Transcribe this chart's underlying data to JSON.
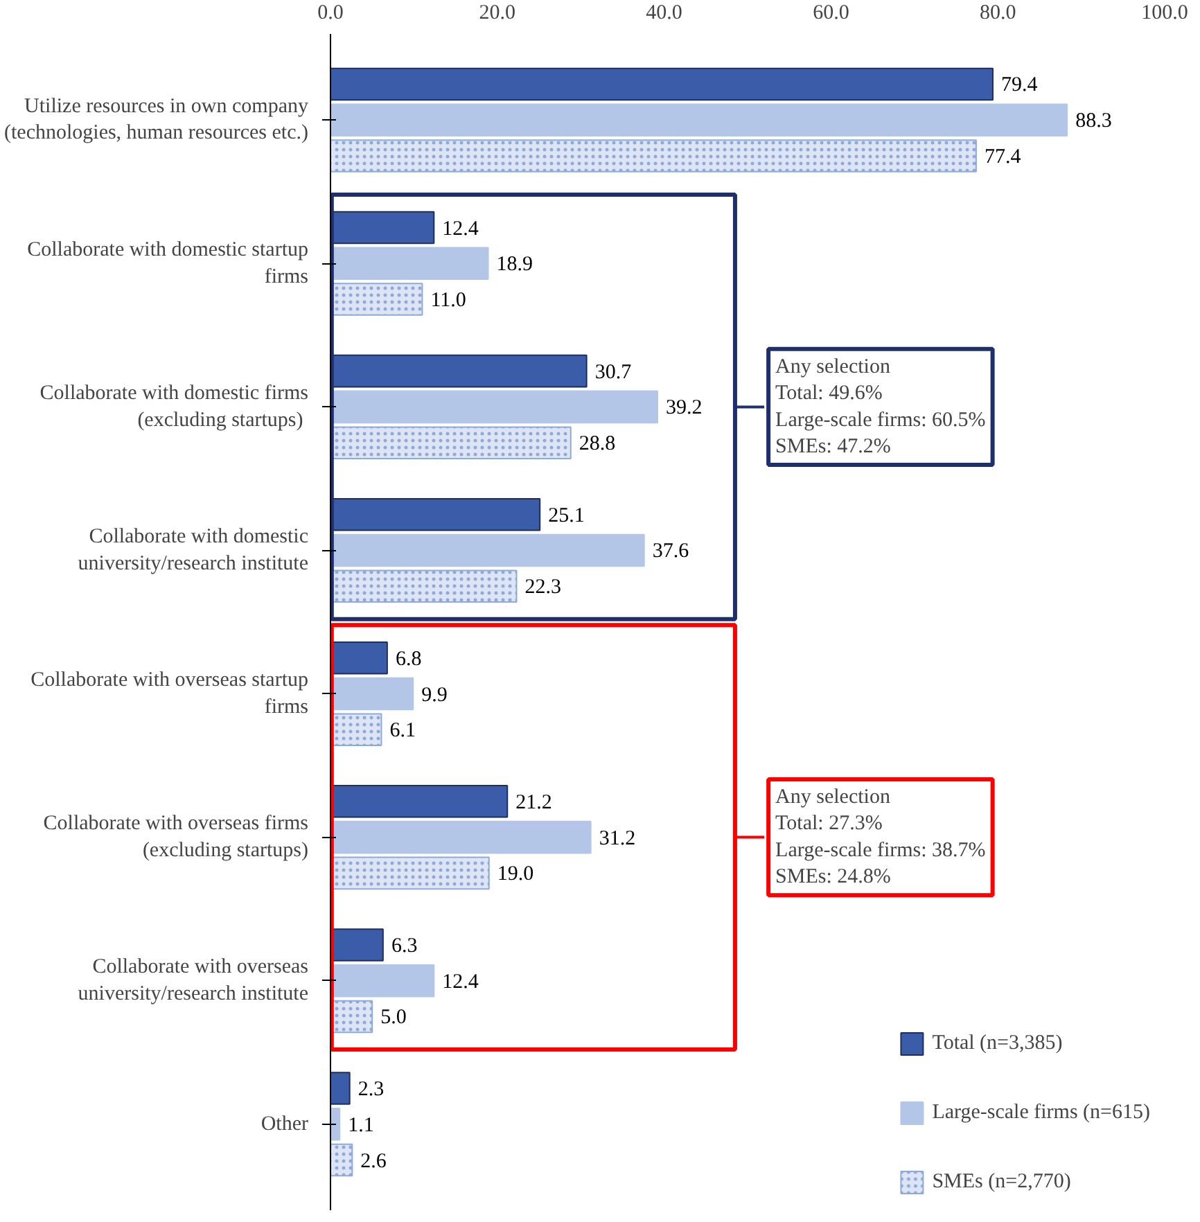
{
  "chart_data": {
    "type": "bar",
    "orientation": "horizontal",
    "categories": [
      "Utilize resources in own company (technologies, human resources etc.)",
      "Collaborate with domestic startup firms",
      "Collaborate with domestic firms (excluding  startups)",
      "Collaborate with domestic university/research institute",
      "Collaborate with overseas startup firms",
      "Collaborate with overseas firms (excluding startups)",
      "Collaborate with overseas university/research institute",
      "Other"
    ],
    "series": [
      {
        "name": "Total (n=3,385)",
        "color": "#3b5ca8",
        "values": [
          79.4,
          12.4,
          30.7,
          25.1,
          6.8,
          21.2,
          6.3,
          2.3
        ],
        "value_labels": [
          "79.4",
          "12.4",
          "30.7",
          "25.1",
          "6.8",
          "21.2",
          "6.3",
          "2.3"
        ]
      },
      {
        "name": "Large-scale firms (n=615)",
        "color": "#b4c6e7",
        "values": [
          88.3,
          18.9,
          39.2,
          37.6,
          9.9,
          31.2,
          12.4,
          1.1
        ],
        "value_labels": [
          "88.3",
          "18.9",
          "39.2",
          "37.6",
          "9.9",
          "31.2",
          "12.4",
          "1.1"
        ]
      },
      {
        "name": "SMEs (n=2,770)",
        "color": "#8eaadb",
        "values": [
          77.4,
          11.0,
          28.8,
          22.3,
          6.1,
          19.0,
          5.0,
          2.6
        ],
        "value_labels": [
          "77.4",
          "11.0",
          "28.8",
          "22.3",
          "6.1",
          "19.0",
          "5.0",
          "2.6"
        ]
      }
    ],
    "xlim": [
      0,
      100
    ],
    "xticks": [
      {
        "value": 0,
        "label": "0.0"
      },
      {
        "value": 20,
        "label": "20.0"
      },
      {
        "value": 40,
        "label": "40.0"
      },
      {
        "value": 60,
        "label": "60.0"
      },
      {
        "value": 80,
        "label": "80.0"
      },
      {
        "value": 100,
        "label": "100.0"
      }
    ],
    "grid": false,
    "legend": "bottom right",
    "annotations": [
      "Any selection\nTotal: 49.6%\nLarge-scale firms: 60.5%\nSMEs: 47.2%",
      "Any selection\nTotal: 27.3%\nLarge-scale firms: 38.7%\nSMEs: 24.8%"
    ]
  }
}
